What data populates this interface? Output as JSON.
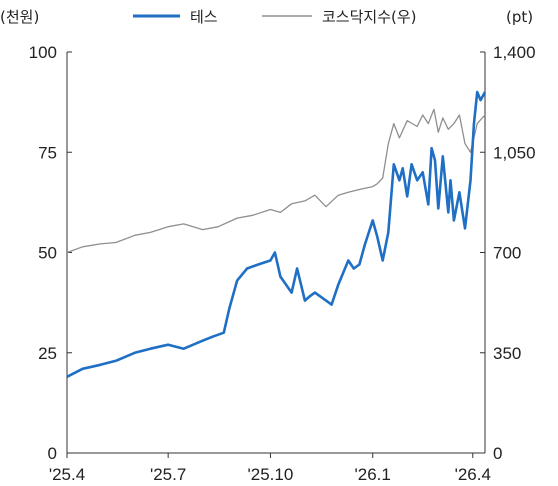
{
  "chart_data": {
    "type": "line",
    "left_unit": "(천원)",
    "right_unit": "(pt)",
    "x_ticks": [
      "'25.4",
      "'25.7",
      "'25.10",
      "'26.1",
      "'26.4"
    ],
    "y_left": {
      "min": 0,
      "max": 100,
      "ticks": [
        "0",
        "25",
        "50",
        "75",
        "100"
      ]
    },
    "y_right": {
      "min": 0,
      "max": 1400,
      "ticks": [
        "0",
        "350",
        "700",
        "1,050",
        "1,400"
      ]
    },
    "grid": false,
    "legend_position": "top-center",
    "series": [
      {
        "name": "테스",
        "axis": "left",
        "color": "#1f6fc5",
        "x": [
          "2025-04-01",
          "2025-04-15",
          "2025-05-01",
          "2025-05-15",
          "2025-06-01",
          "2025-06-15",
          "2025-07-01",
          "2025-07-15",
          "2025-08-01",
          "2025-08-10",
          "2025-08-20",
          "2025-08-25",
          "2025-09-01",
          "2025-09-10",
          "2025-09-20",
          "2025-10-01",
          "2025-10-05",
          "2025-10-10",
          "2025-10-15",
          "2025-10-20",
          "2025-10-25",
          "2025-11-01",
          "2025-11-05",
          "2025-11-10",
          "2025-11-20",
          "2025-11-25",
          "2025-12-01",
          "2025-12-10",
          "2025-12-15",
          "2025-12-20",
          "2025-12-25",
          "2026-01-01",
          "2026-01-05",
          "2026-01-10",
          "2026-01-15",
          "2026-01-20",
          "2026-01-25",
          "2026-01-28",
          "2026-02-01",
          "2026-02-05",
          "2026-02-10",
          "2026-02-15",
          "2026-02-20",
          "2026-02-23",
          "2026-02-26",
          "2026-03-01",
          "2026-03-05",
          "2026-03-10",
          "2026-03-12",
          "2026-03-15",
          "2026-03-20",
          "2026-03-25",
          "2026-03-30",
          "2026-04-02",
          "2026-04-05",
          "2026-04-08",
          "2026-04-12"
        ],
        "values": [
          19,
          21,
          22,
          23,
          25,
          26,
          27,
          26,
          28,
          29,
          30,
          36,
          43,
          46,
          47,
          48,
          50,
          44,
          42,
          40,
          46,
          38,
          39,
          40,
          38,
          37,
          42,
          48,
          46,
          47,
          52,
          58,
          54,
          48,
          55,
          72,
          68,
          71,
          64,
          72,
          68,
          70,
          62,
          76,
          73,
          61,
          74,
          60,
          68,
          58,
          65,
          56,
          68,
          82,
          90,
          88,
          90
        ]
      },
      {
        "name": "코스닥지수(우)",
        "axis": "right",
        "color": "#8f8f8f",
        "x": [
          "2025-04-01",
          "2025-04-15",
          "2025-05-01",
          "2025-05-15",
          "2025-06-01",
          "2025-06-15",
          "2025-07-01",
          "2025-07-15",
          "2025-08-01",
          "2025-08-15",
          "2025-09-01",
          "2025-09-15",
          "2025-10-01",
          "2025-10-10",
          "2025-10-20",
          "2025-11-01",
          "2025-11-10",
          "2025-11-20",
          "2025-12-01",
          "2025-12-10",
          "2025-12-20",
          "2026-01-01",
          "2026-01-05",
          "2026-01-10",
          "2026-01-15",
          "2026-01-20",
          "2026-01-25",
          "2026-02-01",
          "2026-02-10",
          "2026-02-15",
          "2026-02-20",
          "2026-02-25",
          "2026-03-01",
          "2026-03-05",
          "2026-03-10",
          "2026-03-15",
          "2026-03-20",
          "2026-03-25",
          "2026-03-30",
          "2026-04-05",
          "2026-04-12"
        ],
        "values": [
          700,
          720,
          730,
          735,
          760,
          770,
          790,
          800,
          780,
          790,
          820,
          830,
          850,
          840,
          870,
          880,
          900,
          860,
          900,
          910,
          920,
          930,
          940,
          960,
          1080,
          1150,
          1100,
          1160,
          1140,
          1180,
          1150,
          1200,
          1120,
          1170,
          1130,
          1150,
          1180,
          1080,
          1050,
          1150,
          1180
        ]
      }
    ]
  }
}
